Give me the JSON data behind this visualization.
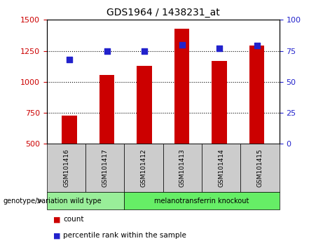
{
  "title": "GDS1964 / 1438231_at",
  "samples": [
    "GSM101416",
    "GSM101417",
    "GSM101412",
    "GSM101413",
    "GSM101414",
    "GSM101415"
  ],
  "counts": [
    730,
    1055,
    1130,
    1430,
    1170,
    1290
  ],
  "percentile_ranks": [
    68,
    75,
    75,
    80,
    77,
    79
  ],
  "ylim_left": [
    500,
    1500
  ],
  "ylim_right": [
    0,
    100
  ],
  "yticks_left": [
    500,
    750,
    1000,
    1250,
    1500
  ],
  "yticks_right": [
    0,
    25,
    50,
    75,
    100
  ],
  "bar_color": "#cc0000",
  "dot_color": "#2222cc",
  "bar_bottom": 500,
  "groups": [
    {
      "label": "wild type",
      "samples_range": [
        0,
        1
      ],
      "color": "#99ee99"
    },
    {
      "label": "melanotransferrin knockout",
      "samples_range": [
        2,
        5
      ],
      "color": "#66ee66"
    }
  ],
  "genotype_label": "genotype/variation",
  "legend_items": [
    {
      "label": "count",
      "color": "#cc0000"
    },
    {
      "label": "percentile rank within the sample",
      "color": "#2222cc"
    }
  ],
  "left_tick_color": "#cc0000",
  "right_tick_color": "#2222cc",
  "grid_color": "#000000",
  "bg_color": "#ffffff",
  "plot_bg": "#ffffff",
  "sample_box_color": "#cccccc",
  "bar_width": 0.4
}
